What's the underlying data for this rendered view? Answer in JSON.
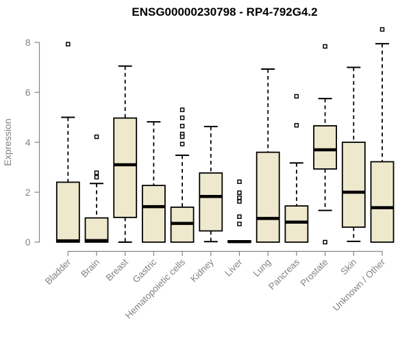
{
  "chart_data": {
    "type": "boxplot",
    "title": "ENSG00000230798 - RP4-792G4.2",
    "xlabel": "",
    "ylabel": "Expression",
    "ylim": [
      0,
      8.6
    ],
    "y_ticks": [
      0,
      2,
      4,
      6,
      8
    ],
    "grid": false,
    "legend": "none",
    "categories": [
      "Bladder",
      "Brain",
      "Breast",
      "Gastric",
      "Hematopoietic cells",
      "Kidney",
      "Liver",
      "Lung",
      "Pancreas",
      "Prostate",
      "Skin",
      "Unknown / Other"
    ],
    "boxes": [
      {
        "category": "Bladder",
        "whisker_low": 0,
        "q1": 0,
        "median": 0.05,
        "q3": 2.4,
        "whisker_high": 5.0,
        "outliers": [
          7.93
        ]
      },
      {
        "category": "Brain",
        "whisker_low": 0,
        "q1": 0,
        "median": 0.06,
        "q3": 0.97,
        "whisker_high": 2.35,
        "outliers": [
          4.22,
          2.78,
          2.6
        ]
      },
      {
        "category": "Breast",
        "whisker_low": 0,
        "q1": 0.99,
        "median": 3.1,
        "q3": 4.97,
        "whisker_high": 7.05,
        "outliers": []
      },
      {
        "category": "Gastric",
        "whisker_low": 0,
        "q1": 0,
        "median": 1.42,
        "q3": 2.27,
        "whisker_high": 4.82,
        "outliers": []
      },
      {
        "category": "Hematopoietic cells",
        "whisker_low": 0,
        "q1": 0,
        "median": 0.75,
        "q3": 1.4,
        "whisker_high": 3.48,
        "outliers": [
          5.3,
          4.98,
          4.65,
          4.33,
          4.22,
          3.93
        ]
      },
      {
        "category": "Kidney",
        "whisker_low": 0.02,
        "q1": 0.45,
        "median": 1.83,
        "q3": 2.77,
        "whisker_high": 4.63,
        "outliers": []
      },
      {
        "category": "Liver",
        "whisker_low": 0,
        "q1": 0,
        "median": 0.02,
        "q3": 0.05,
        "whisker_high": 0.05,
        "outliers": [
          2.42,
          1.98,
          1.78,
          1.63,
          1.02,
          0.73
        ]
      },
      {
        "category": "Lung",
        "whisker_low": 0,
        "q1": 0,
        "median": 0.95,
        "q3": 3.6,
        "whisker_high": 6.93,
        "outliers": []
      },
      {
        "category": "Pancreas",
        "whisker_low": 0,
        "q1": 0,
        "median": 0.8,
        "q3": 1.45,
        "whisker_high": 3.17,
        "outliers": [
          5.84,
          4.68
        ]
      },
      {
        "category": "Prostate",
        "whisker_low": 1.27,
        "q1": 2.93,
        "median": 3.7,
        "q3": 4.66,
        "whisker_high": 5.75,
        "outliers": [
          7.84,
          0.0
        ]
      },
      {
        "category": "Skin",
        "whisker_low": 0.03,
        "q1": 0.6,
        "median": 2.0,
        "q3": 4.0,
        "whisker_high": 7.0,
        "outliers": []
      },
      {
        "category": "Unknown / Other",
        "whisker_low": 0,
        "q1": 0,
        "median": 1.38,
        "q3": 3.22,
        "whisker_high": 7.95,
        "outliers": [
          8.52
        ]
      }
    ],
    "colors": {
      "box_fill": "#EEE8CD",
      "box_border": "#000000",
      "median": "#000000",
      "whisker": "#000000",
      "outlier_fill": "#ffffff",
      "outlier_border": "#000000",
      "axis": "#828282",
      "tick_label": "#828282",
      "title_color": "#000000",
      "background": "#ffffff"
    }
  }
}
